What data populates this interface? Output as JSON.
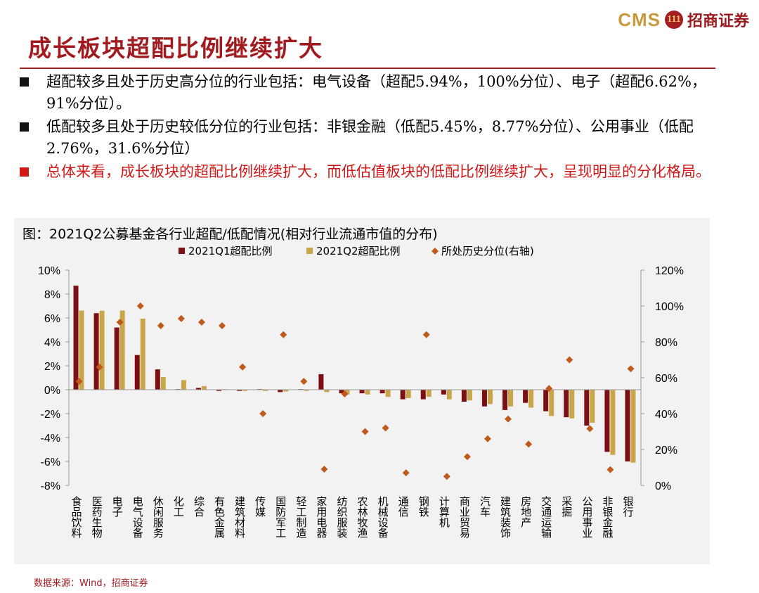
{
  "brand": {
    "name": "CMS",
    "logo_text": "111",
    "cn_name": "招商证券"
  },
  "page_title": "成长板块超配比例继续扩大",
  "bullets": [
    "超配较多且处于历史高分位的行业包括：电气设备（超配5.94%，100%分位）、电子（超配6.62%，91%分位）。",
    "低配较多且处于历史较低分位的行业包括：非银金融（低配5.45%，8.77%分位）、公用事业（低配2.76%，31.6%分位）",
    "总体来看，成长板块的超配比例继续扩大，而低估值板块的低配比例继续扩大，呈现明显的分化格局。"
  ],
  "source": "数据来源：Wind，招商证券",
  "colors": {
    "q1": "#7b0f14",
    "q2": "#c9a64a",
    "pct": "#c05a1c",
    "title_red": "#a11a1e",
    "highlight": "#d01818"
  },
  "chart_data": {
    "type": "bar",
    "title": "图：2021Q2公募基金各行业超配/低配情况(相对行业流通市值的分布)",
    "categories": [
      "食品饮料",
      "医药生物",
      "电子",
      "电气设备",
      "休闲服务",
      "化工",
      "综合",
      "有色金属",
      "建筑材料",
      "传媒",
      "国防军工",
      "轻工制造",
      "家用电器",
      "纺织服装",
      "农林牧渔",
      "机械设备",
      "通信",
      "钢铁",
      "计算机",
      "商业贸易",
      "汽车",
      "建筑装饰",
      "房地产",
      "交通运输",
      "采掘",
      "公用事业",
      "非银金融",
      "银行"
    ],
    "series": [
      {
        "name": "2021Q1超配比例",
        "type": "bar",
        "axis": "left",
        "values": [
          8.7,
          6.4,
          5.2,
          2.9,
          1.7,
          0.05,
          0.15,
          -0.1,
          -0.1,
          0.05,
          -0.2,
          0.05,
          1.3,
          -0.3,
          -0.3,
          -0.3,
          -0.8,
          -0.8,
          -0.4,
          -1.0,
          -1.4,
          -1.7,
          -1.1,
          -1.8,
          -2.3,
          -3.0,
          -5.2,
          -6.0
        ]
      },
      {
        "name": "2021Q2超配比例",
        "type": "bar",
        "axis": "left",
        "values": [
          6.62,
          6.6,
          6.62,
          5.94,
          1.05,
          0.8,
          0.3,
          0.05,
          -0.1,
          -0.1,
          -0.15,
          -0.1,
          -0.2,
          -0.4,
          -0.4,
          -0.6,
          -0.7,
          -0.6,
          -0.8,
          -0.9,
          -1.2,
          -1.4,
          -1.5,
          -2.2,
          -2.4,
          -2.76,
          -5.45,
          -6.1
        ]
      },
      {
        "name": "所处历史分位(右轴)",
        "type": "scatter",
        "axis": "right",
        "values": [
          58,
          66,
          91,
          100,
          89,
          93,
          91,
          89,
          66,
          40,
          84,
          58,
          9,
          51,
          30,
          32,
          7,
          84,
          5,
          16,
          26,
          37,
          23,
          54,
          70,
          31.6,
          8.77,
          65
        ]
      }
    ],
    "left_axis": {
      "min": -8,
      "max": 10,
      "step": 2,
      "unit": "%"
    },
    "right_axis": {
      "min": 0,
      "max": 120,
      "step": 20,
      "unit": "%"
    },
    "legend_position": "top-center",
    "grid": false
  }
}
